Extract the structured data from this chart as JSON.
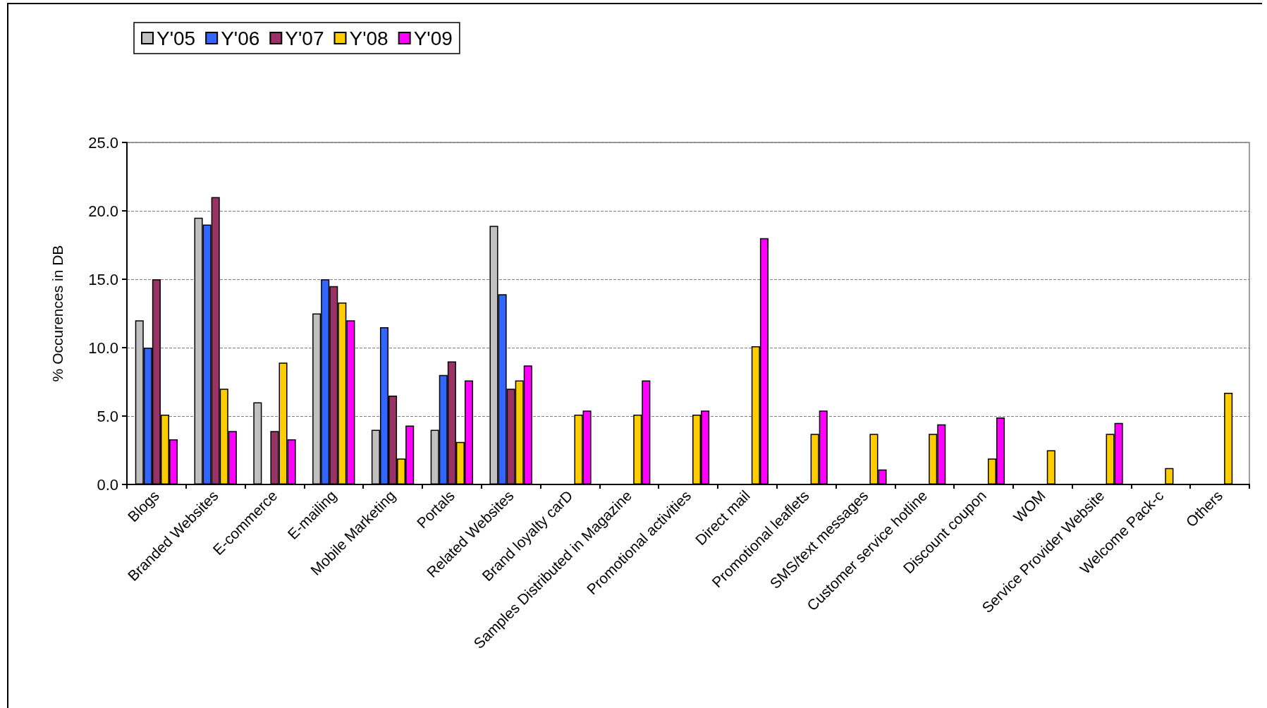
{
  "chart_data": {
    "type": "bar",
    "ylabel": "% Occurences in DB",
    "categories": [
      "Blogs",
      "Branded Websites",
      "E-commerce",
      "E-mailing",
      "Mobile Marketing",
      "Portals",
      "Related Websites",
      "Brand loyalty carD",
      "Samples Distributed in Magazine",
      "Promotional activities",
      "Direct mail",
      "Promotional leaflets",
      "SMS/text messages",
      "Customer service hotline",
      "Discount coupon",
      "WOM",
      "Service Provider Website",
      "Welcome Pack-c",
      "Others"
    ],
    "series": [
      {
        "name": "Y'05",
        "color": "#c0c0c0",
        "values": [
          12.0,
          19.5,
          6.0,
          12.5,
          4.0,
          4.0,
          18.9,
          null,
          null,
          null,
          null,
          null,
          null,
          null,
          null,
          null,
          null,
          null,
          null
        ]
      },
      {
        "name": "Y'06",
        "color": "#3366ff",
        "values": [
          10.0,
          19.0,
          null,
          15.0,
          11.5,
          8.0,
          13.9,
          null,
          null,
          null,
          null,
          null,
          null,
          null,
          null,
          null,
          null,
          null,
          null
        ]
      },
      {
        "name": "Y'07",
        "color": "#993366",
        "values": [
          15.0,
          21.0,
          3.9,
          14.5,
          6.5,
          9.0,
          7.0,
          null,
          null,
          null,
          null,
          null,
          null,
          null,
          null,
          null,
          null,
          null,
          null
        ]
      },
      {
        "name": "Y'08",
        "color": "#ffcc00",
        "values": [
          5.1,
          7.0,
          8.9,
          13.3,
          1.9,
          3.1,
          7.6,
          5.1,
          5.1,
          5.1,
          10.1,
          3.7,
          3.7,
          3.7,
          1.9,
          2.5,
          3.7,
          1.2,
          6.7
        ]
      },
      {
        "name": "Y'09",
        "color": "#ff00ff",
        "values": [
          3.3,
          3.9,
          3.3,
          12.0,
          4.3,
          7.6,
          8.7,
          5.4,
          7.6,
          5.4,
          18.0,
          5.4,
          1.1,
          4.4,
          4.9,
          null,
          4.5,
          null,
          null
        ]
      }
    ],
    "ylim": [
      0,
      25
    ],
    "yticks": [
      {
        "value": 0,
        "label": "0.0"
      },
      {
        "value": 5,
        "label": "5.0"
      },
      {
        "value": 10,
        "label": "10.0"
      },
      {
        "value": 15,
        "label": "15.0"
      },
      {
        "value": 20,
        "label": "20.0"
      },
      {
        "value": 25,
        "label": "25.0"
      }
    ],
    "grid": "y",
    "legend": "top left"
  }
}
